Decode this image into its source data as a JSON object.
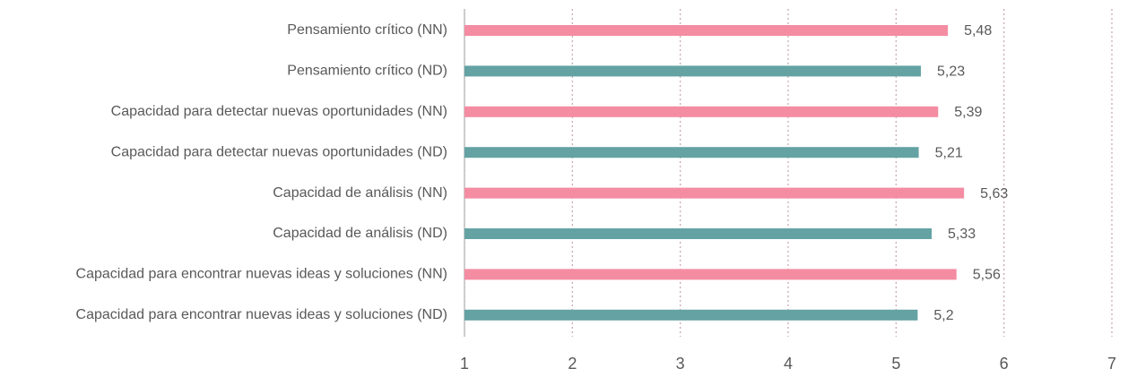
{
  "chart_data": {
    "type": "barh",
    "categories": [
      "Pensamiento crítico (NN)",
      "Pensamiento crítico (ND)",
      "Capacidad para detectar nuevas oportunidades (NN)",
      "Capacidad para detectar nuevas oportunidades (ND)",
      "Capacidad de análisis (NN)",
      "Capacidad de análisis (ND)",
      "Capacidad para encontrar nuevas ideas y soluciones (NN)",
      "Capacidad para encontrar nuevas ideas y soluciones (ND)"
    ],
    "values": [
      5.48,
      5.23,
      5.39,
      5.21,
      5.63,
      5.33,
      5.56,
      5.2
    ],
    "value_labels": [
      "5,48",
      "5,23",
      "5,39",
      "5,21",
      "5,63",
      "5,33",
      "5,56",
      "5,2"
    ],
    "colors": [
      "#f48ca2",
      "#64a2a3",
      "#f48ca2",
      "#64a2a3",
      "#f48ca2",
      "#64a2a3",
      "#f48ca2",
      "#64a2a3"
    ],
    "xlim": [
      1,
      7
    ],
    "xticks": [
      1,
      2,
      3,
      4,
      5,
      6,
      7
    ],
    "grid": true
  }
}
